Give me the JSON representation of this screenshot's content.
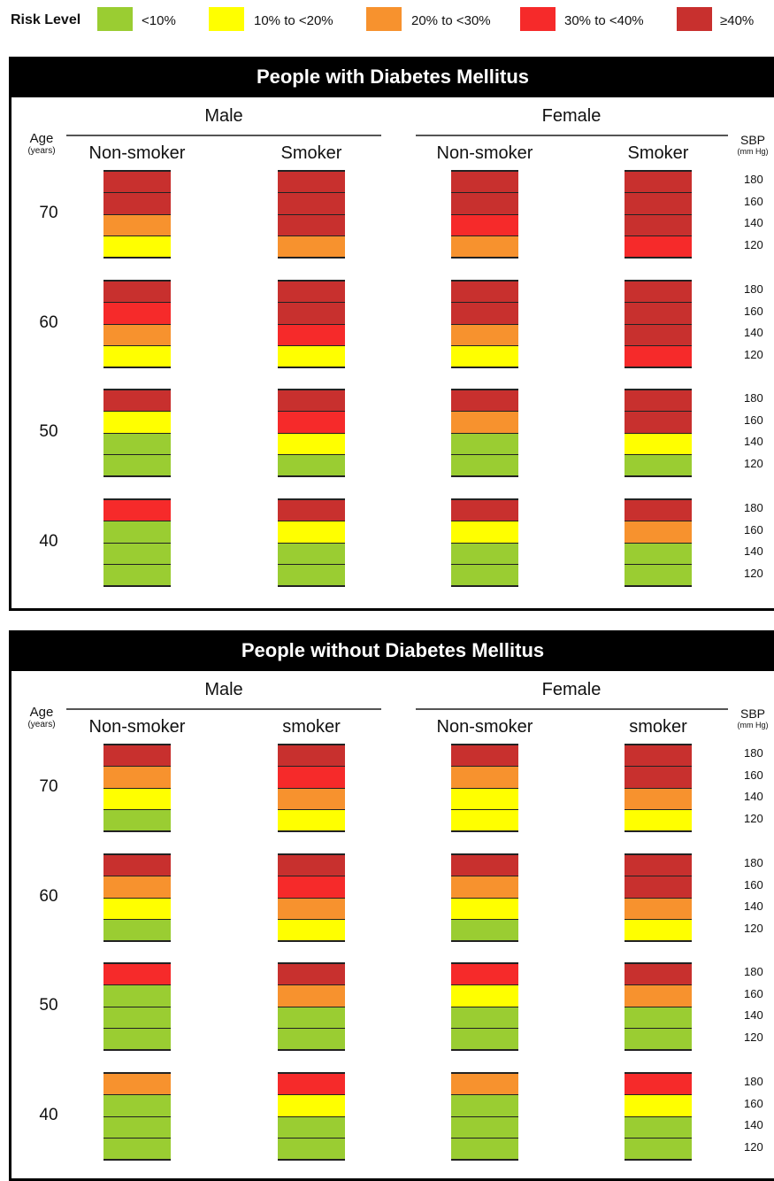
{
  "legend": {
    "title": "Risk Level",
    "items": [
      {
        "label": "<10%",
        "color": "#9acd32"
      },
      {
        "label": "10% to <20%",
        "color": "#ffff00"
      },
      {
        "label": "20% to <30%",
        "color": "#f7922e"
      },
      {
        "label": "30% to <40%",
        "color": "#f62a2a"
      },
      {
        "label": "≥40%",
        "color": "#c8302e"
      }
    ]
  },
  "panels": [
    {
      "title": "People with Diabetes Mellitus",
      "male_label": "Male",
      "female_label": "Female",
      "age_head": "Age",
      "age_unit": "(years)",
      "sbp_head": "SBP",
      "sbp_unit": "(mm Hg)",
      "columns": [
        "Non-smoker",
        "Smoker",
        "Non-smoker",
        "Smoker"
      ],
      "sbp_values": [
        "180",
        "160",
        "140",
        "120"
      ],
      "rows": [
        {
          "age": "70",
          "blocks": [
            [
              4,
              4,
              2,
              1
            ],
            [
              4,
              4,
              4,
              2
            ],
            [
              4,
              4,
              3,
              2
            ],
            [
              4,
              4,
              4,
              3
            ]
          ]
        },
        {
          "age": "60",
          "blocks": [
            [
              4,
              3,
              2,
              1
            ],
            [
              4,
              4,
              3,
              1
            ],
            [
              4,
              4,
              2,
              1
            ],
            [
              4,
              4,
              4,
              3
            ]
          ]
        },
        {
          "age": "50",
          "blocks": [
            [
              4,
              1,
              0,
              0
            ],
            [
              4,
              3,
              1,
              0
            ],
            [
              4,
              2,
              0,
              0
            ],
            [
              4,
              4,
              1,
              0
            ]
          ]
        },
        {
          "age": "40",
          "blocks": [
            [
              3,
              0,
              0,
              0
            ],
            [
              4,
              1,
              0,
              0
            ],
            [
              4,
              1,
              0,
              0
            ],
            [
              4,
              2,
              0,
              0
            ]
          ]
        }
      ]
    },
    {
      "title": "People without Diabetes Mellitus",
      "male_label": "Male",
      "female_label": "Female",
      "age_head": "Age",
      "age_unit": "(years)",
      "sbp_head": "SBP",
      "sbp_unit": "(mm Hg)",
      "columns": [
        "Non-smoker",
        "smoker",
        "Non-smoker",
        "smoker"
      ],
      "sbp_values": [
        "180",
        "160",
        "140",
        "120"
      ],
      "rows": [
        {
          "age": "70",
          "blocks": [
            [
              4,
              2,
              1,
              0
            ],
            [
              4,
              3,
              2,
              1
            ],
            [
              4,
              2,
              1,
              1
            ],
            [
              4,
              4,
              2,
              1
            ]
          ]
        },
        {
          "age": "60",
          "blocks": [
            [
              4,
              2,
              1,
              0
            ],
            [
              4,
              3,
              2,
              1
            ],
            [
              4,
              2,
              1,
              0
            ],
            [
              4,
              4,
              2,
              1
            ]
          ]
        },
        {
          "age": "50",
          "blocks": [
            [
              3,
              0,
              0,
              0
            ],
            [
              4,
              2,
              0,
              0
            ],
            [
              3,
              1,
              0,
              0
            ],
            [
              4,
              2,
              0,
              0
            ]
          ]
        },
        {
          "age": "40",
          "blocks": [
            [
              2,
              0,
              0,
              0
            ],
            [
              3,
              1,
              0,
              0
            ],
            [
              2,
              0,
              0,
              0
            ],
            [
              3,
              1,
              0,
              0
            ]
          ]
        }
      ]
    }
  ]
}
